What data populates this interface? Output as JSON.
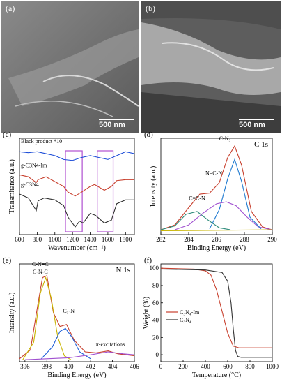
{
  "panels": {
    "a": {
      "label": "(a)",
      "scale": "500 nm"
    },
    "b": {
      "label": "(b)",
      "scale": "500 nm"
    },
    "c": {
      "label": "(c)"
    },
    "d": {
      "label": "(d)"
    },
    "e": {
      "label": "(e)"
    },
    "f": {
      "label": "(f)"
    }
  },
  "chart_data": [
    {
      "panel": "c",
      "type": "line",
      "xlabel": "Wavenumber (cm⁻¹)",
      "ylabel": "Transmitance (a.u.)",
      "xlim": [
        600,
        1900
      ],
      "xticks": [
        600,
        800,
        1000,
        1200,
        1400,
        1600,
        1800
      ],
      "series": [
        {
          "name": "Black product *10",
          "color": "#1f4fd8",
          "x": [
            600,
            700,
            800,
            900,
            1000,
            1100,
            1200,
            1300,
            1400,
            1500,
            1600,
            1700,
            1800,
            1900
          ],
          "y": [
            86,
            85,
            86,
            84,
            82,
            78,
            77,
            80,
            82,
            80,
            78,
            82,
            86,
            84
          ]
        },
        {
          "name": "g-C3N4-Im",
          "color": "#c8402e",
          "x": [
            600,
            700,
            790,
            810,
            900,
            1000,
            1100,
            1150,
            1230,
            1300,
            1400,
            1450,
            1560,
            1640,
            1700,
            1800,
            1900
          ],
          "y": [
            62,
            60,
            54,
            57,
            60,
            55,
            50,
            44,
            40,
            44,
            50,
            52,
            46,
            50,
            56,
            57,
            57
          ]
        },
        {
          "name": "g-C3N4",
          "color": "#333333",
          "x": [
            600,
            700,
            790,
            810,
            880,
            1000,
            1100,
            1150,
            1230,
            1280,
            1320,
            1400,
            1460,
            1560,
            1640,
            1700,
            1800,
            1900
          ],
          "y": [
            42,
            38,
            25,
            35,
            38,
            36,
            30,
            18,
            8,
            14,
            12,
            22,
            20,
            12,
            15,
            32,
            36,
            36
          ]
        }
      ],
      "highlight_ranges": [
        [
          1120,
          1310
        ],
        [
          1480,
          1660
        ]
      ]
    },
    {
      "panel": "d",
      "type": "line",
      "title": "C 1s",
      "xlabel": "Binding Energy (eV)",
      "ylabel": "Intensity (a.u.)",
      "xlim": [
        282,
        290
      ],
      "xticks": [
        282,
        284,
        286,
        288,
        290
      ],
      "ylim": [
        0,
        1
      ],
      "peak_labels": [
        "C=C-N",
        "N=C-N",
        "C-N₃"
      ],
      "series": [
        {
          "name": "envelope",
          "color": "#c8402e",
          "x": [
            282,
            283,
            284,
            284.8,
            285.5,
            286.2,
            286.8,
            287.3,
            287.8,
            288.5,
            289.3,
            290
          ],
          "y": [
            0.05,
            0.1,
            0.28,
            0.42,
            0.43,
            0.54,
            0.8,
            0.92,
            0.72,
            0.24,
            0.08,
            0.05
          ]
        },
        {
          "name": "C=C-N",
          "color": "#2e8b7a",
          "x": [
            282,
            283,
            283.8,
            284.6,
            285.4,
            286.2,
            287
          ],
          "y": [
            0.05,
            0.09,
            0.21,
            0.24,
            0.15,
            0.07,
            0.05
          ]
        },
        {
          "name": "N=C-N",
          "color": "#a050d0",
          "x": [
            283,
            284,
            285,
            286,
            286.7,
            287.4,
            288.2,
            289,
            290
          ],
          "y": [
            0.05,
            0.1,
            0.22,
            0.32,
            0.34,
            0.3,
            0.18,
            0.08,
            0.05
          ]
        },
        {
          "name": "C-N3",
          "color": "#1f7ad0",
          "x": [
            285.5,
            286.2,
            286.8,
            287.3,
            287.8,
            288.4,
            289.2
          ],
          "y": [
            0.06,
            0.26,
            0.58,
            0.78,
            0.55,
            0.18,
            0.06
          ]
        },
        {
          "name": "baseline",
          "color": "#c8b400",
          "x": [
            282,
            290
          ],
          "y": [
            0.04,
            0.05
          ]
        }
      ]
    },
    {
      "panel": "e",
      "type": "line",
      "title": "N 1s",
      "xlabel": "Binding Energy (eV)",
      "ylabel": "Intensity (a.u.)",
      "xlim": [
        395.5,
        406
      ],
      "xticks": [
        396,
        398,
        400,
        402,
        404,
        406
      ],
      "ylim": [
        0,
        1
      ],
      "peak_labels": [
        "C-N=C\nC-N-C",
        "C₃-N",
        "π-excitations"
      ],
      "series": [
        {
          "name": "envelope",
          "color": "#c8402e",
          "x": [
            395.5,
            396.5,
            397.2,
            397.6,
            398,
            398.6,
            399.2,
            399.8,
            400.5,
            401.5,
            402.5,
            403.6,
            404.5,
            406
          ],
          "y": [
            0.03,
            0.12,
            0.6,
            0.86,
            0.88,
            0.5,
            0.36,
            0.38,
            0.22,
            0.1,
            0.09,
            0.11,
            0.08,
            0.06
          ]
        },
        {
          "name": "C-N=C/C-N-C",
          "color": "#c8b400",
          "x": [
            395.8,
            396.8,
            397.4,
            397.9,
            398.4,
            399,
            399.6,
            400.2
          ],
          "y": [
            0.02,
            0.2,
            0.7,
            0.86,
            0.65,
            0.25,
            0.06,
            0.02
          ]
        },
        {
          "name": "C3-N",
          "color": "#1f5fd8",
          "x": [
            397.5,
            398.5,
            399.2,
            399.7,
            400.3,
            401,
            402
          ],
          "y": [
            0.03,
            0.15,
            0.31,
            0.34,
            0.25,
            0.1,
            0.03
          ]
        },
        {
          "name": "π-excitations",
          "color": "#a050d0",
          "x": [
            396,
            400,
            402,
            403.6,
            405,
            406
          ],
          "y": [
            0.02,
            0.04,
            0.07,
            0.1,
            0.08,
            0.07
          ]
        }
      ]
    },
    {
      "panel": "f",
      "type": "line",
      "xlabel": "Temperature (°C)",
      "ylabel": "Weight (%)",
      "xlim": [
        0,
        1000
      ],
      "ylim": [
        -8,
        105
      ],
      "xticks": [
        0,
        200,
        400,
        600,
        800,
        1000
      ],
      "yticks": [
        0,
        20,
        40,
        60,
        80,
        100
      ],
      "legend": "center-left",
      "series": [
        {
          "name": "C₃N₄-Im",
          "color": "#c8402e",
          "x": [
            0,
            300,
            400,
            450,
            500,
            550,
            600,
            650,
            700,
            800,
            1000
          ],
          "y": [
            100,
            99,
            97,
            92,
            75,
            50,
            25,
            10,
            8,
            8,
            8
          ]
        },
        {
          "name": "C₃N₄",
          "color": "#333333",
          "x": [
            0,
            400,
            550,
            600,
            630,
            650,
            670,
            690,
            720,
            800,
            1000
          ],
          "y": [
            99,
            98,
            95,
            85,
            60,
            30,
            5,
            -2,
            -3,
            -3,
            -3
          ]
        }
      ]
    }
  ]
}
